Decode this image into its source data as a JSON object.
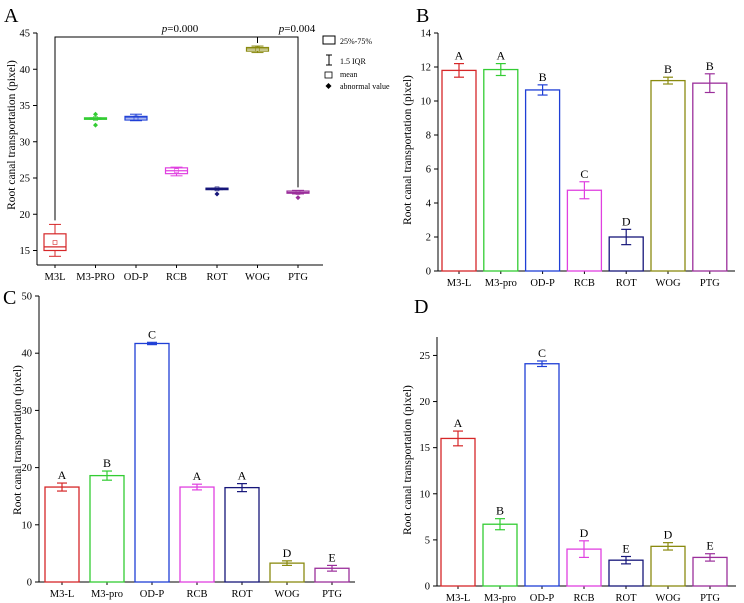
{
  "chart_data": [
    {
      "panel": "A",
      "type": "box",
      "ylabel": "Root canal transportation (pixel)",
      "ylim": [
        13,
        45
      ],
      "yticks": [
        15,
        20,
        25,
        30,
        35,
        40,
        45
      ],
      "categories": [
        "M3L",
        "M3-PRO",
        "OD-P",
        "RCB",
        "ROT",
        "WOG",
        "PTG"
      ],
      "colors": [
        "#d62728",
        "#33cc33",
        "#1f3fd6",
        "#e040e0",
        "#16167a",
        "#8a8a10",
        "#9b2f9b"
      ],
      "boxes": [
        {
          "q1": 15.0,
          "median": 15.5,
          "q3": 17.3,
          "mean": 16.1,
          "whisker_low": 14.2,
          "whisker_high": 18.6,
          "outliers": []
        },
        {
          "q1": 33.1,
          "median": 33.2,
          "q3": 33.3,
          "mean": 33.2,
          "whisker_low": 33.1,
          "whisker_high": 33.3,
          "outliers": [
            32.3,
            33.8
          ]
        },
        {
          "q1": 33.0,
          "median": 33.3,
          "q3": 33.5,
          "mean": 33.3,
          "whisker_low": 32.9,
          "whisker_high": 33.8,
          "outliers": []
        },
        {
          "q1": 25.6,
          "median": 26.0,
          "q3": 26.4,
          "mean": 26.0,
          "whisker_low": 25.3,
          "whisker_high": 26.5,
          "outliers": []
        },
        {
          "q1": 23.4,
          "median": 23.5,
          "q3": 23.6,
          "mean": 23.5,
          "whisker_low": 23.4,
          "whisker_high": 23.6,
          "outliers": [
            22.8
          ]
        },
        {
          "q1": 42.5,
          "median": 42.8,
          "q3": 43.0,
          "mean": 42.8,
          "whisker_low": 42.3,
          "whisker_high": 43.2,
          "outliers": []
        },
        {
          "q1": 22.9,
          "median": 23.0,
          "q3": 23.2,
          "mean": 23.0,
          "whisker_low": 22.8,
          "whisker_high": 23.3,
          "outliers": [
            22.3
          ]
        }
      ],
      "comparisons": [
        {
          "from": "M3L",
          "to": "WOG",
          "label_p": "p",
          "label_rest": "=0.000"
        },
        {
          "from": "WOG",
          "to": "PTG",
          "label_p": "p",
          "label_rest": "=0.004"
        }
      ],
      "legend": [
        "25%-75%",
        "1.5 IQR",
        "mean",
        "abnormal value"
      ]
    },
    {
      "panel": "B",
      "type": "bar",
      "ylabel": "Root canal transportation (pixel)",
      "ylim": [
        0,
        14
      ],
      "yticks": [
        0,
        2,
        4,
        6,
        8,
        10,
        12,
        14
      ],
      "categories": [
        "M3-L",
        "M3-pro",
        "OD-P",
        "RCB",
        "ROT",
        "WOG",
        "PTG"
      ],
      "colors": [
        "#d62728",
        "#33cc33",
        "#1f3fd6",
        "#e040e0",
        "#16167a",
        "#8a8a10",
        "#9b2f9b"
      ],
      "values": [
        11.8,
        11.85,
        10.65,
        4.75,
        2.0,
        11.2,
        11.05
      ],
      "errors": [
        0.4,
        0.35,
        0.3,
        0.5,
        0.45,
        0.2,
        0.55
      ],
      "letters": [
        "A",
        "A",
        "B",
        "C",
        "D",
        "B",
        "B"
      ]
    },
    {
      "panel": "C",
      "type": "bar",
      "ylabel": "Root canal transportation (pixel)",
      "ylim": [
        0,
        50
      ],
      "yticks": [
        0,
        10,
        20,
        30,
        40,
        50
      ],
      "categories": [
        "M3-L",
        "M3-pro",
        "OD-P",
        "RCB",
        "ROT",
        "WOG",
        "PTG"
      ],
      "colors": [
        "#d62728",
        "#33cc33",
        "#1f3fd6",
        "#e040e0",
        "#16167a",
        "#8a8a10",
        "#9b2f9b"
      ],
      "values": [
        16.6,
        18.6,
        41.7,
        16.6,
        16.5,
        3.3,
        2.4
      ],
      "errors": [
        0.7,
        0.8,
        0.2,
        0.5,
        0.7,
        0.4,
        0.5
      ],
      "letters": [
        "A",
        "B",
        "C",
        "A",
        "A",
        "D",
        "E"
      ]
    },
    {
      "panel": "D",
      "type": "bar",
      "ylabel": "Root canal transportation (pixel)",
      "ylim": [
        0,
        27
      ],
      "yticks": [
        0,
        5,
        10,
        15,
        20,
        25
      ],
      "categories": [
        "M3-L",
        "M3-pro",
        "OD-P",
        "RCB",
        "ROT",
        "WOG",
        "PTG"
      ],
      "colors": [
        "#d62728",
        "#33cc33",
        "#1f3fd6",
        "#e040e0",
        "#16167a",
        "#8a8a10",
        "#9b2f9b"
      ],
      "values": [
        16.0,
        6.7,
        24.1,
        4.0,
        2.8,
        4.3,
        3.1
      ],
      "errors": [
        0.8,
        0.6,
        0.3,
        0.9,
        0.4,
        0.4,
        0.4
      ],
      "letters": [
        "A",
        "B",
        "C",
        "D",
        "E",
        "D",
        "E"
      ]
    }
  ]
}
